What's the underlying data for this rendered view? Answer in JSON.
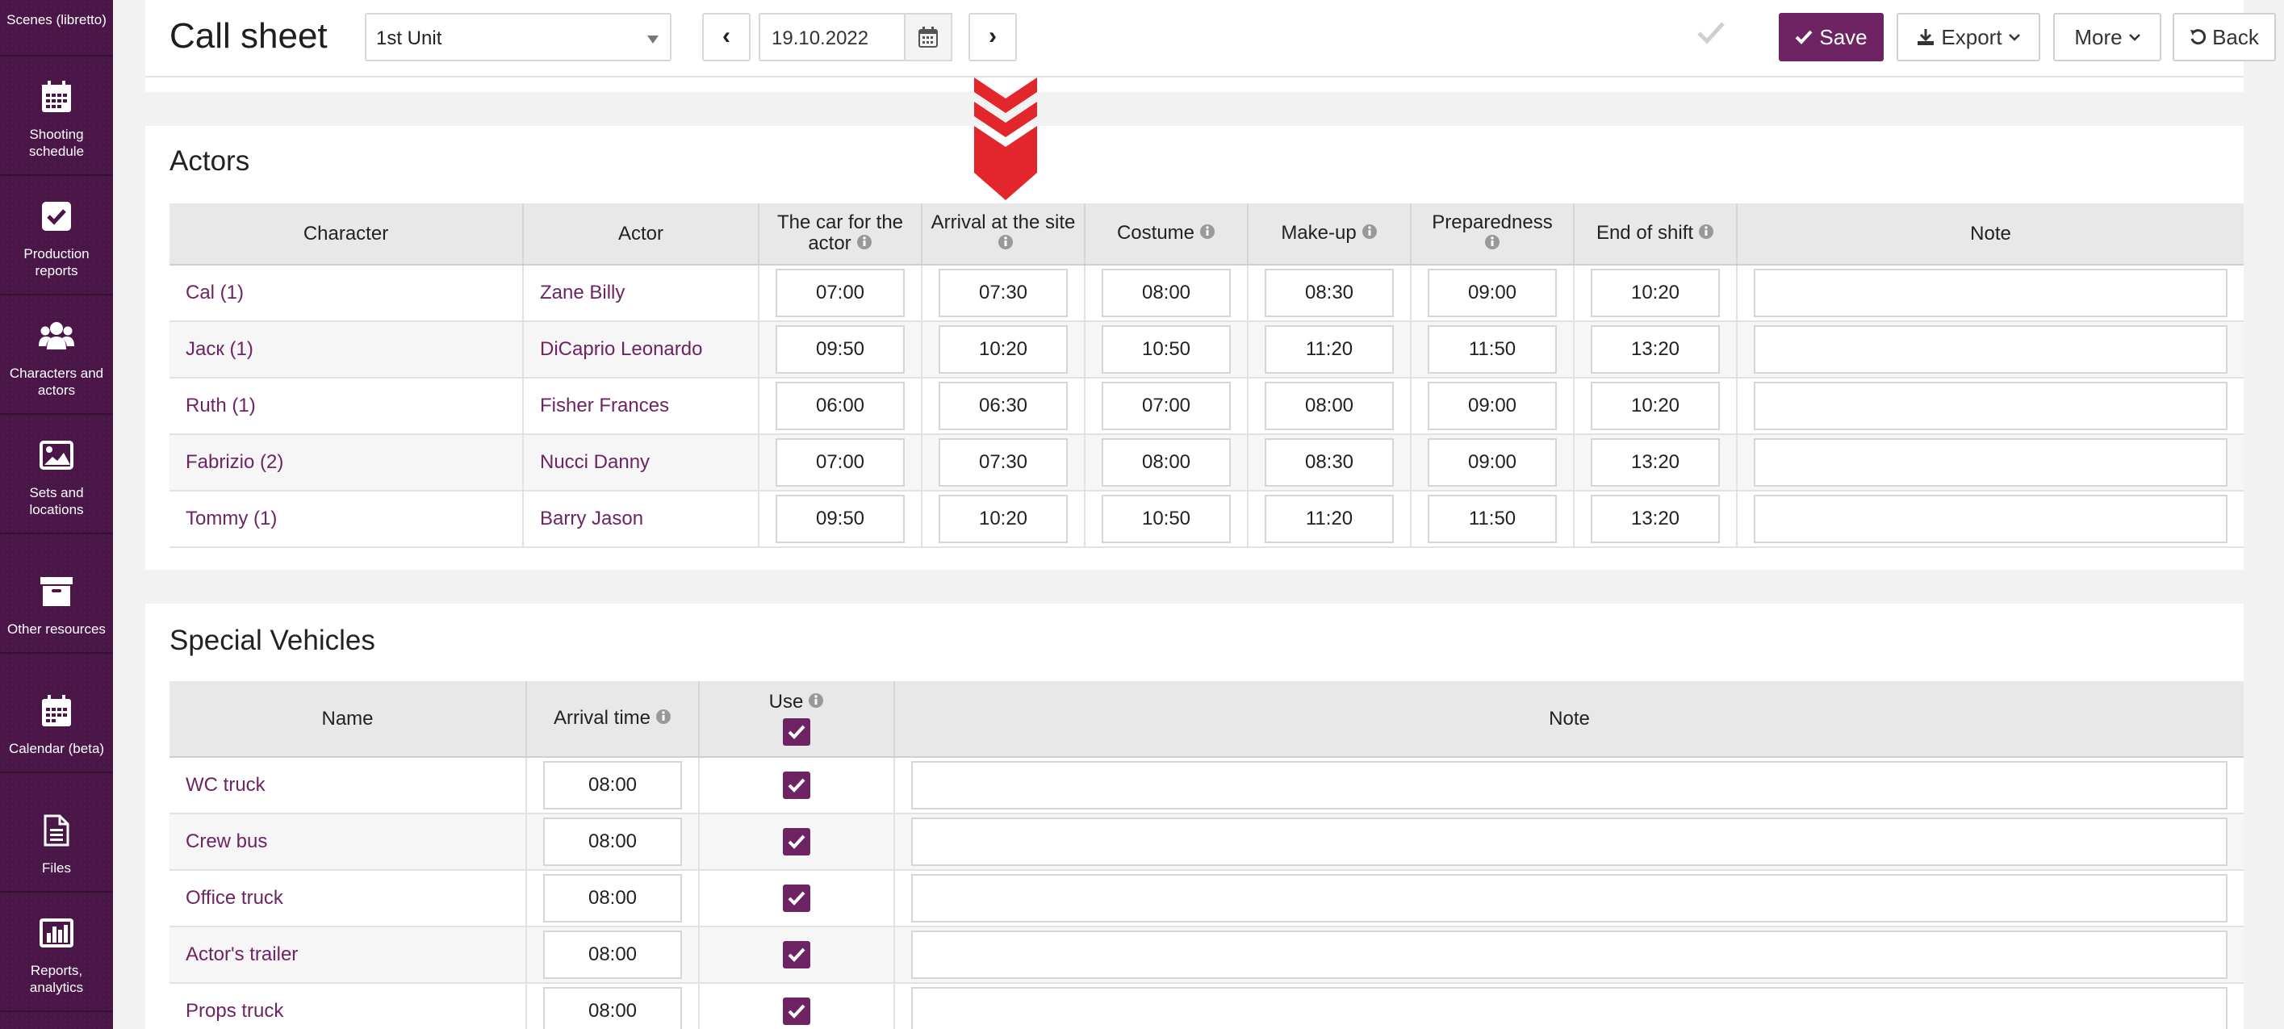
{
  "sidebar": {
    "items": [
      {
        "label": "Scenes (libretto)",
        "icon": "scenes-icon"
      },
      {
        "label": "Shooting schedule",
        "icon": "calendar-icon"
      },
      {
        "label": "Production reports",
        "icon": "checkbox-icon"
      },
      {
        "label": "Characters and actors",
        "icon": "users-icon"
      },
      {
        "label": "Sets and locations",
        "icon": "image-icon"
      },
      {
        "label": "Other resources",
        "icon": "archive-icon"
      },
      {
        "label": "Calendar (beta)",
        "icon": "calendar-icon"
      },
      {
        "label": "Files",
        "icon": "file-icon"
      },
      {
        "label": "Reports, analytics",
        "icon": "bar-chart-icon"
      }
    ]
  },
  "header": {
    "title": "Call sheet",
    "unit_select": "1st Unit",
    "prev": "‹",
    "next": "›",
    "date": "19.10.2022",
    "save": "Save",
    "export": "Export",
    "more": "More",
    "back": "Back"
  },
  "actors": {
    "title": "Actors",
    "columns": {
      "character": "Character",
      "actor": "Actor",
      "car": "The car for the actor",
      "arrival": "Arrival at the site",
      "costume": "Costume",
      "makeup": "Make-up",
      "preparedness": "Preparedness",
      "end_of_shift": "End of shift",
      "note": "Note"
    },
    "rows": [
      {
        "character": "Cal (1)",
        "actor": "Zane Billy",
        "car": "07:00",
        "arrival": "07:30",
        "costume": "08:00",
        "makeup": "08:30",
        "preparedness": "09:00",
        "end": "10:20"
      },
      {
        "character": "Jacк (1)",
        "actor": "DiCaprio Leonardo",
        "car": "09:50",
        "arrival": "10:20",
        "costume": "10:50",
        "makeup": "11:20",
        "preparedness": "11:50",
        "end": "13:20"
      },
      {
        "character": "Ruth (1)",
        "actor": "Fisher Frances",
        "car": "06:00",
        "arrival": "06:30",
        "costume": "07:00",
        "makeup": "08:00",
        "preparedness": "09:00",
        "end": "10:20"
      },
      {
        "character": "Fabrizio (2)",
        "actor": "Nucci Danny",
        "car": "07:00",
        "arrival": "07:30",
        "costume": "08:00",
        "makeup": "08:30",
        "preparedness": "09:00",
        "end": "13:20"
      },
      {
        "character": "Tommy (1)",
        "actor": "Barry Jason",
        "car": "09:50",
        "arrival": "10:20",
        "costume": "10:50",
        "makeup": "11:20",
        "preparedness": "11:50",
        "end": "13:20"
      }
    ]
  },
  "vehicles": {
    "title": "Special Vehicles",
    "columns": {
      "name": "Name",
      "arrival": "Arrival time",
      "use": "Use",
      "note": "Note"
    },
    "rows": [
      {
        "name": "WC truck",
        "arrival": "08:00",
        "use": true
      },
      {
        "name": "Crew bus",
        "arrival": "08:00",
        "use": true
      },
      {
        "name": "Office truck",
        "arrival": "08:00",
        "use": true
      },
      {
        "name": "Actor's trailer",
        "arrival": "08:00",
        "use": true
      },
      {
        "name": "Props truck",
        "arrival": "08:00",
        "use": true
      }
    ]
  },
  "colors": {
    "accent": "#6e2463",
    "sidebar": "#4a1648",
    "arrow": "#e3262b"
  }
}
